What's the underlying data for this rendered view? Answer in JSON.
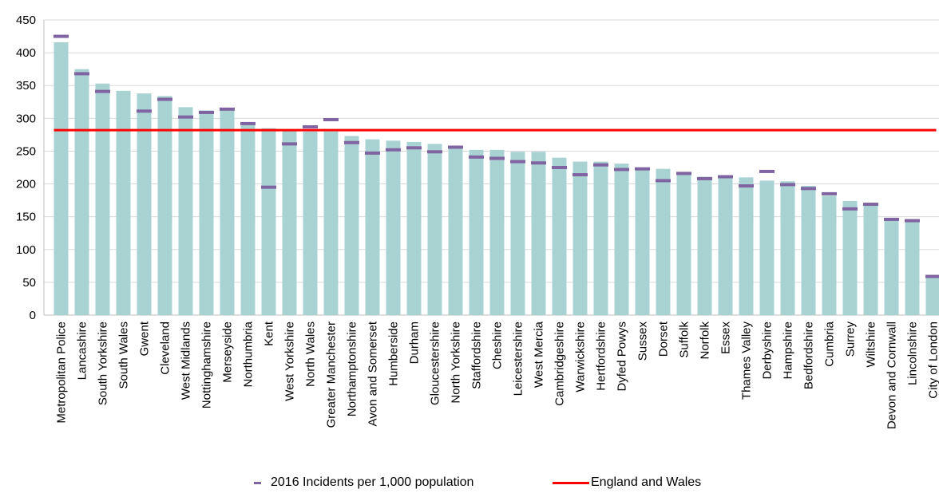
{
  "chart_data": {
    "type": "bar",
    "categories": [
      "Metropolitan Police",
      "Lancashire",
      "South Yorkshire",
      "South Wales",
      "Gwent",
      "Cleveland",
      "West Midlands",
      "Nottinghamshire",
      "Merseyside",
      "Northumbria",
      "Kent",
      "West Yorkshire",
      "North Wales",
      "Greater Manchester",
      "Northamptonshire",
      "Avon and Somerset",
      "Humberside",
      "Durham",
      "Gloucestershire",
      "North Yorkshire",
      "Staffordshire",
      "Cheshire",
      "Leicestershire",
      "West Mercia",
      "Cambridgeshire",
      "Warwickshire",
      "Hertfordshire",
      "Dyfed Powys",
      "Sussex",
      "Dorset",
      "Suffolk",
      "Norfolk",
      "Essex",
      "Thames Valley",
      "Derbyshire",
      "Hampshire",
      "Bedfordshire",
      "Cumbria",
      "Surrey",
      "Wiltshire",
      "Devon and Cornwall",
      "Lincolnshire",
      "City of London"
    ],
    "values": [
      416,
      375,
      353,
      342,
      338,
      334,
      317,
      312,
      312,
      293,
      285,
      281,
      280,
      280,
      273,
      268,
      266,
      264,
      261,
      257,
      252,
      252,
      249,
      249,
      240,
      234,
      234,
      231,
      224,
      223,
      217,
      211,
      211,
      210,
      205,
      204,
      197,
      182,
      174,
      169,
      148,
      143,
      57
    ],
    "series": [
      {
        "name": "2016 Incidents per 1,000 population",
        "type": "marker",
        "values": [
          425,
          368,
          341,
          null,
          311,
          329,
          302,
          309,
          314,
          292,
          195,
          261,
          287,
          298,
          263,
          247,
          252,
          255,
          249,
          256,
          241,
          239,
          234,
          232,
          225,
          214,
          229,
          222,
          223,
          205,
          216,
          208,
          211,
          197,
          219,
          199,
          193,
          185,
          162,
          169,
          146,
          144,
          59
        ]
      },
      {
        "name": "England and Wales",
        "type": "line",
        "value": 282
      }
    ],
    "title": "",
    "xlabel": "",
    "ylabel": "",
    "ylim": [
      0,
      450
    ],
    "yticks": [
      0,
      50,
      100,
      150,
      200,
      250,
      300,
      350,
      400,
      450
    ],
    "grid": true,
    "legend": "bottom",
    "colors": {
      "bars": "#a9d3d3",
      "marker": "#8064a2",
      "line": "#ff0000",
      "grid": "#d9d9d9"
    }
  }
}
